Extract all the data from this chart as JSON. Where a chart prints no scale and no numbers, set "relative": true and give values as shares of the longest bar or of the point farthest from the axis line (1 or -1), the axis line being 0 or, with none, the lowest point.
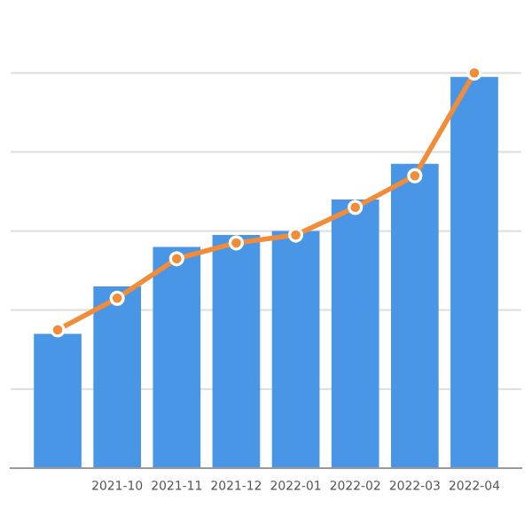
{
  "chart_data": {
    "type": "bar",
    "relative": true,
    "categories": [
      null,
      "2021-10",
      "2021-11",
      "2021-12",
      "2022-01",
      "2022-02",
      "2022-03",
      "2022-04"
    ],
    "series": [
      {
        "color": "#4a96e6",
        "values": [
          0.34,
          0.46,
          0.56,
          0.59,
          0.6,
          0.68,
          0.77,
          0.99
        ]
      },
      {
        "type": "line",
        "color": "#f28c38",
        "values": [
          0.35,
          0.43,
          0.53,
          0.57,
          0.59,
          0.66,
          0.74,
          1.0
        ],
        "marker": "circle"
      }
    ],
    "grid": "y",
    "legend": false
  }
}
